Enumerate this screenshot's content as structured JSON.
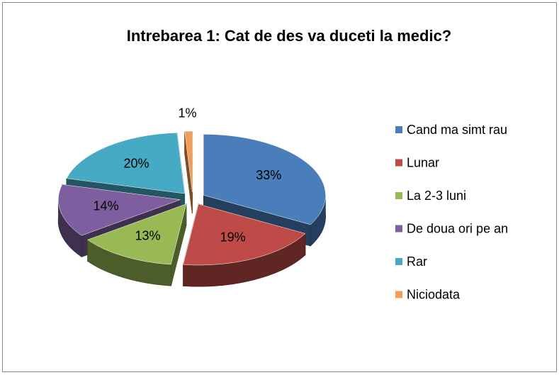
{
  "chart_data": {
    "type": "pie",
    "title": "Intrebarea 1: Cat de des va duceti la medic?",
    "categories": [
      "Cand ma simt rau",
      "Lunar",
      "La 2-3 luni",
      "De doua ori pe an",
      "Rar",
      "Niciodata"
    ],
    "values": [
      33,
      19,
      13,
      14,
      20,
      1
    ],
    "value_labels": [
      "33%",
      "19%",
      "13%",
      "14%",
      "20%",
      "1%"
    ],
    "colors": [
      "#4a7ebb",
      "#be4b48",
      "#98b954",
      "#7d5fa0",
      "#46aac5",
      "#f59d56"
    ],
    "legend": "right"
  }
}
